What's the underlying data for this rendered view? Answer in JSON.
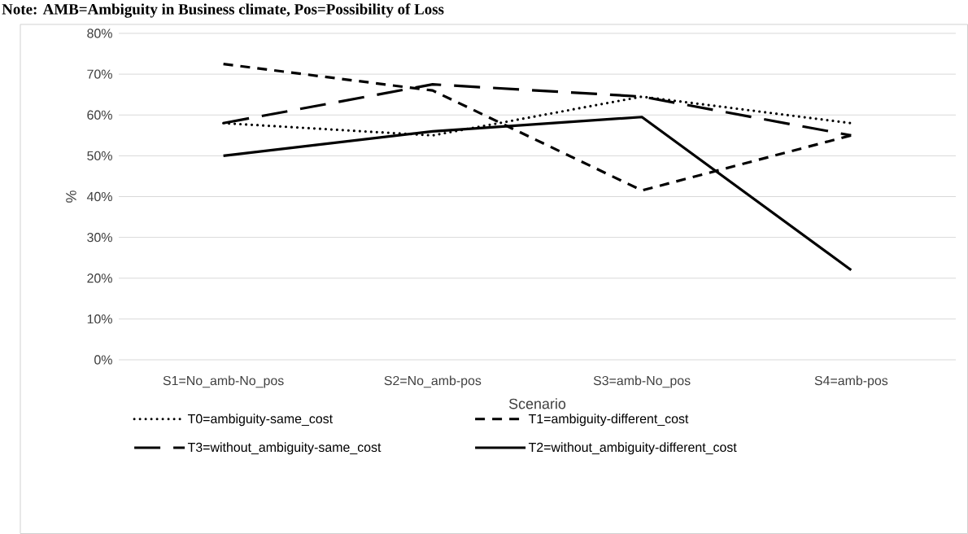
{
  "chart_data": {
    "type": "line",
    "title": "Note: AMB=Ambiguity in Business climate, Pos=Possibility of Loss",
    "xlabel": "Scenario",
    "ylabel": "%",
    "categories": [
      "S1=No_amb-No_pos",
      "S2=No_amb-pos",
      "S3=amb-No_pos",
      "S4=amb-pos"
    ],
    "series": [
      {
        "name": "T0=ambiguity-same_cost",
        "color": "#000000",
        "line_style": "dotted",
        "values": [
          58,
          55,
          64.5,
          58
        ]
      },
      {
        "name": "T1=ambiguity-different_cost",
        "color": "#000000",
        "line_style": "dashed",
        "values": [
          72.5,
          66,
          41.5,
          55
        ]
      },
      {
        "name": "T3=without_ambiguity-same_cost",
        "color": "#000000",
        "line_style": "long dashed",
        "values": [
          58,
          67.5,
          64.5,
          55
        ]
      },
      {
        "name": "T2=without_ambiguity-different_cost",
        "color": "#000000",
        "line_style": "solid",
        "values": [
          50,
          56,
          59.5,
          22
        ]
      }
    ],
    "ylim": [
      0,
      80
    ],
    "yticks": [
      {
        "value": 0,
        "label": "0%"
      },
      {
        "value": 10,
        "label": "10%"
      },
      {
        "value": 20,
        "label": "20%"
      },
      {
        "value": 30,
        "label": "30%"
      },
      {
        "value": 40,
        "label": "40%"
      },
      {
        "value": 50,
        "label": "50%"
      },
      {
        "value": 60,
        "label": "60%"
      },
      {
        "value": 70,
        "label": "70%"
      },
      {
        "value": 80,
        "label": "80%"
      }
    ],
    "grid": "y",
    "legend": "bottom",
    "marker": "none"
  }
}
